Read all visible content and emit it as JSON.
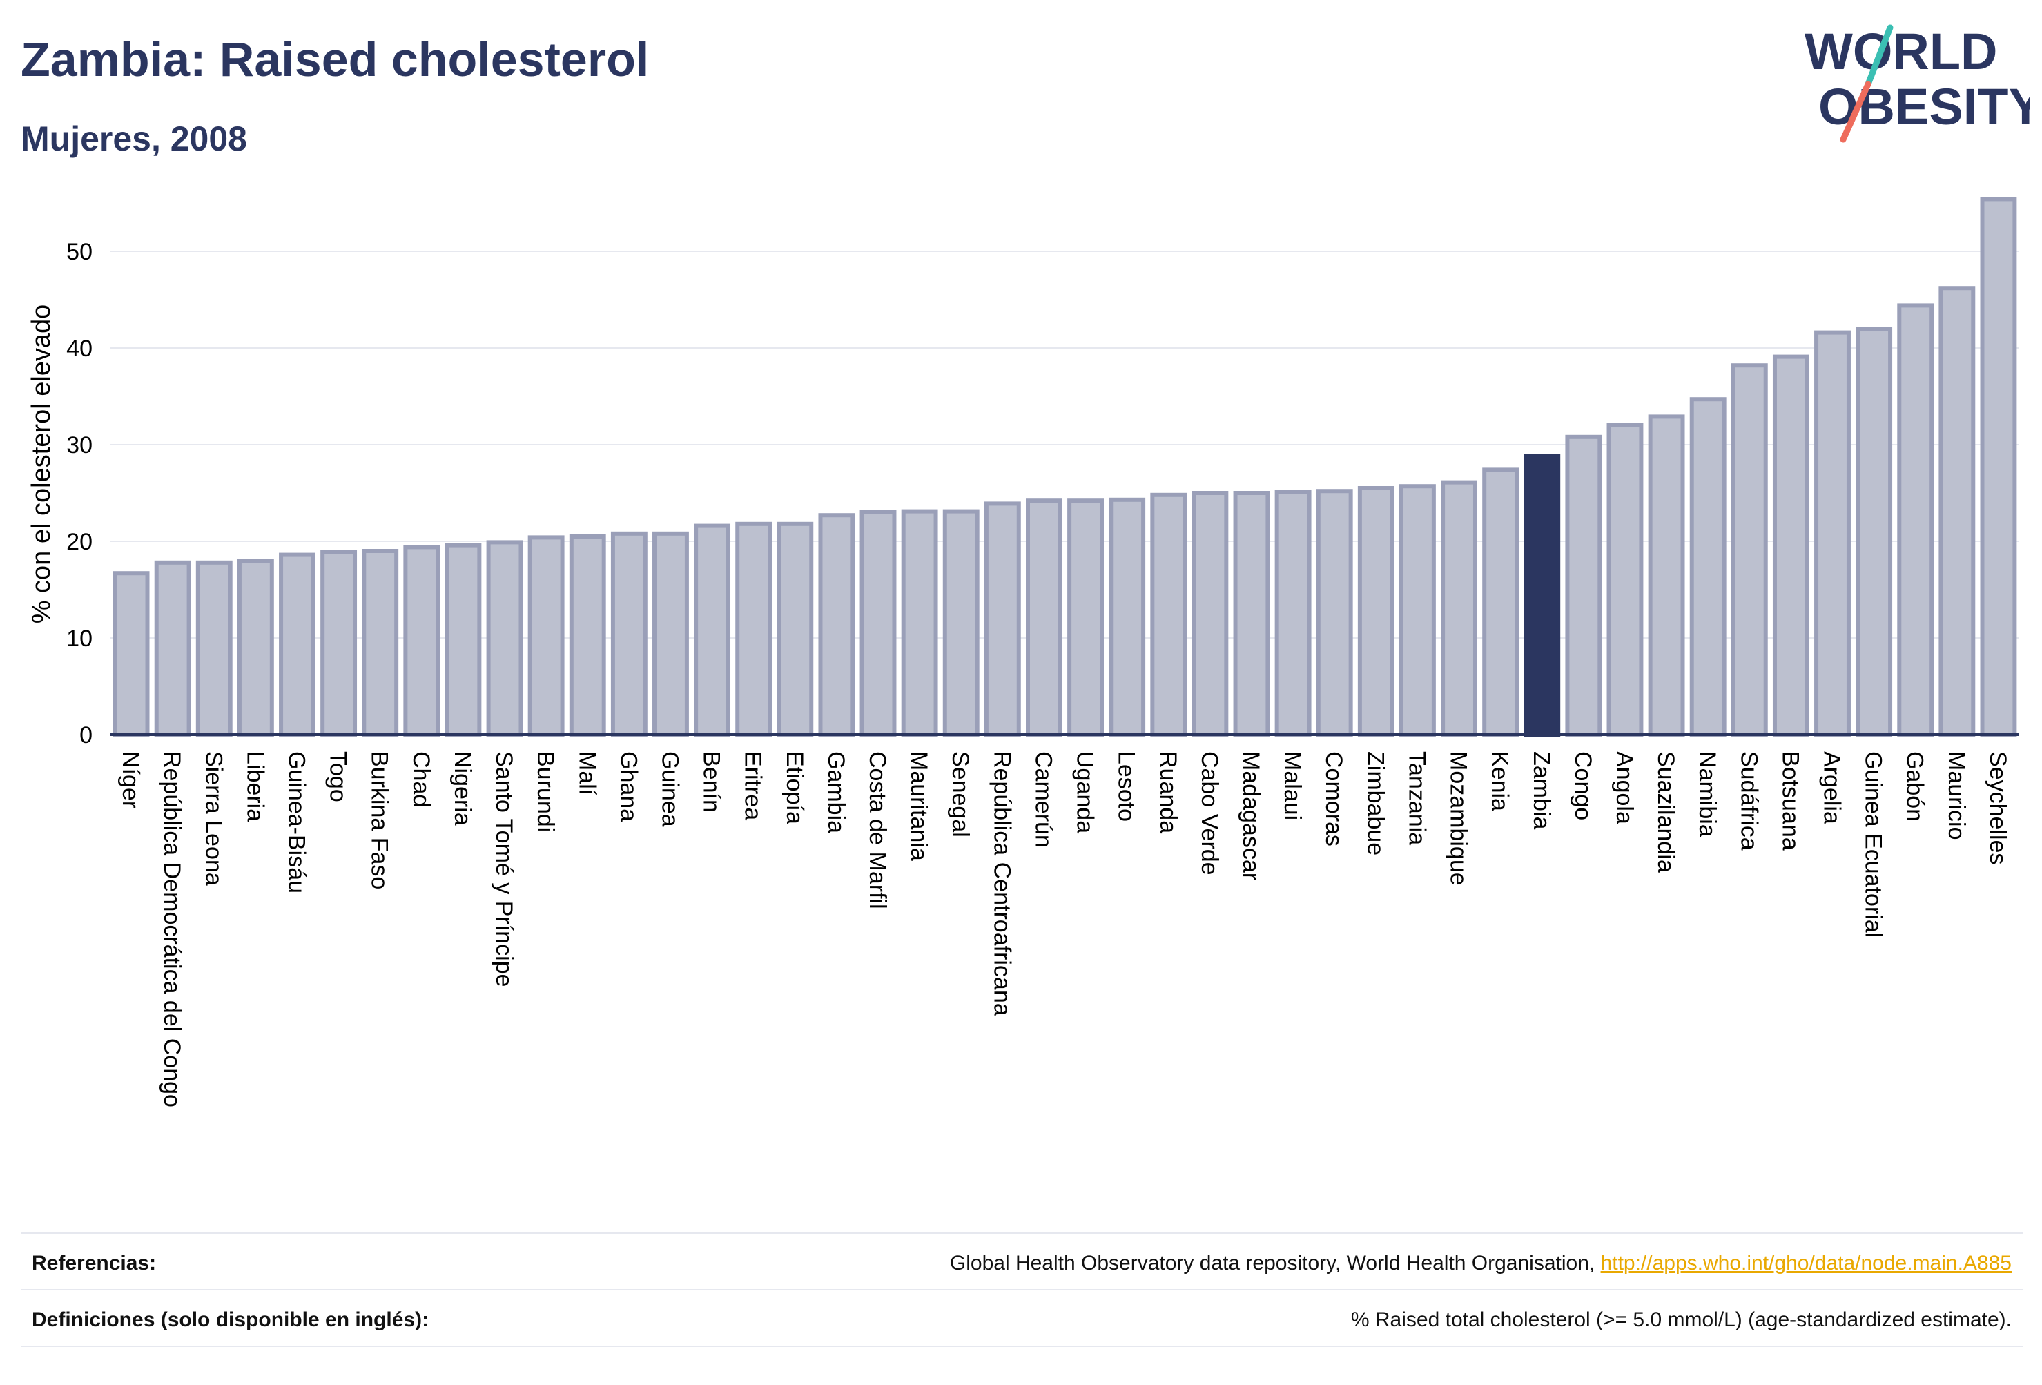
{
  "header": {
    "title": "Zambia: Raised cholesterol",
    "subtitle": "Mujeres, 2008"
  },
  "logo": {
    "line1": "WORLD",
    "line2": "OBESITY",
    "colors": {
      "text": "#2b3660",
      "slash_top": "#3bbfb3",
      "slash_bottom": "#ee6c5c"
    }
  },
  "colors": {
    "bar_fill": "#bcc0cf",
    "bar_stroke": "#9a9fb8",
    "highlight": "#2b3660",
    "grid": "#e6e8ef",
    "axis": "#2b3660"
  },
  "chart_data": {
    "type": "bar",
    "title": "Zambia: Raised cholesterol",
    "subtitle": "Mujeres, 2008",
    "xlabel": "",
    "ylabel": "% con el colesterol elevado",
    "ylim": [
      0,
      56
    ],
    "yticks": [
      0,
      10,
      20,
      30,
      40,
      50
    ],
    "grid": true,
    "highlight": "Zambia",
    "categories": [
      "Níger",
      "República Democrática del Congo",
      "Sierra Leona",
      "Liberia",
      "Guinea-Bisáu",
      "Togo",
      "Burkina Faso",
      "Chad",
      "Nigeria",
      "Santo Tomé y Príncipe",
      "Burundi",
      "Malí",
      "Ghana",
      "Guinea",
      "Benín",
      "Eritrea",
      "Etiopía",
      "Gambia",
      "Costa de Marfil",
      "Mauritania",
      "Senegal",
      "República Centroafricana",
      "Camerún",
      "Uganda",
      "Lesoto",
      "Ruanda",
      "Cabo Verde",
      "Madagascar",
      "Malaui",
      "Comoras",
      "Zimbabue",
      "Tanzania",
      "Mozambique",
      "Kenia",
      "Zambia",
      "Congo",
      "Angola",
      "Suazilandia",
      "Namibia",
      "Sudáfrica",
      "Botsuana",
      "Argelia",
      "Guinea Ecuatorial",
      "Gabón",
      "Mauricio",
      "Seychelles"
    ],
    "values": [
      16.7,
      17.8,
      17.8,
      18.0,
      18.6,
      18.9,
      19.0,
      19.4,
      19.6,
      19.9,
      20.4,
      20.5,
      20.8,
      20.8,
      21.6,
      21.8,
      21.8,
      22.7,
      23.0,
      23.1,
      23.1,
      23.9,
      24.2,
      24.2,
      24.3,
      24.8,
      25.0,
      25.0,
      25.1,
      25.2,
      25.5,
      25.7,
      26.1,
      27.4,
      28.8,
      30.8,
      32.0,
      32.9,
      34.7,
      38.2,
      39.1,
      41.6,
      42.0,
      44.4,
      46.2,
      55.4
    ]
  },
  "footer": {
    "references_label": "Referencias:",
    "references_text": "Global Health Observatory data repository, World Health Organisation, ",
    "references_link": "http://apps.who.int/gho/data/node.main.A885",
    "definitions_label": "Definiciones (solo disponible en inglés):",
    "definitions_text": "% Raised total cholesterol (>= 5.0 mmol/L) (age-standardized estimate)."
  }
}
